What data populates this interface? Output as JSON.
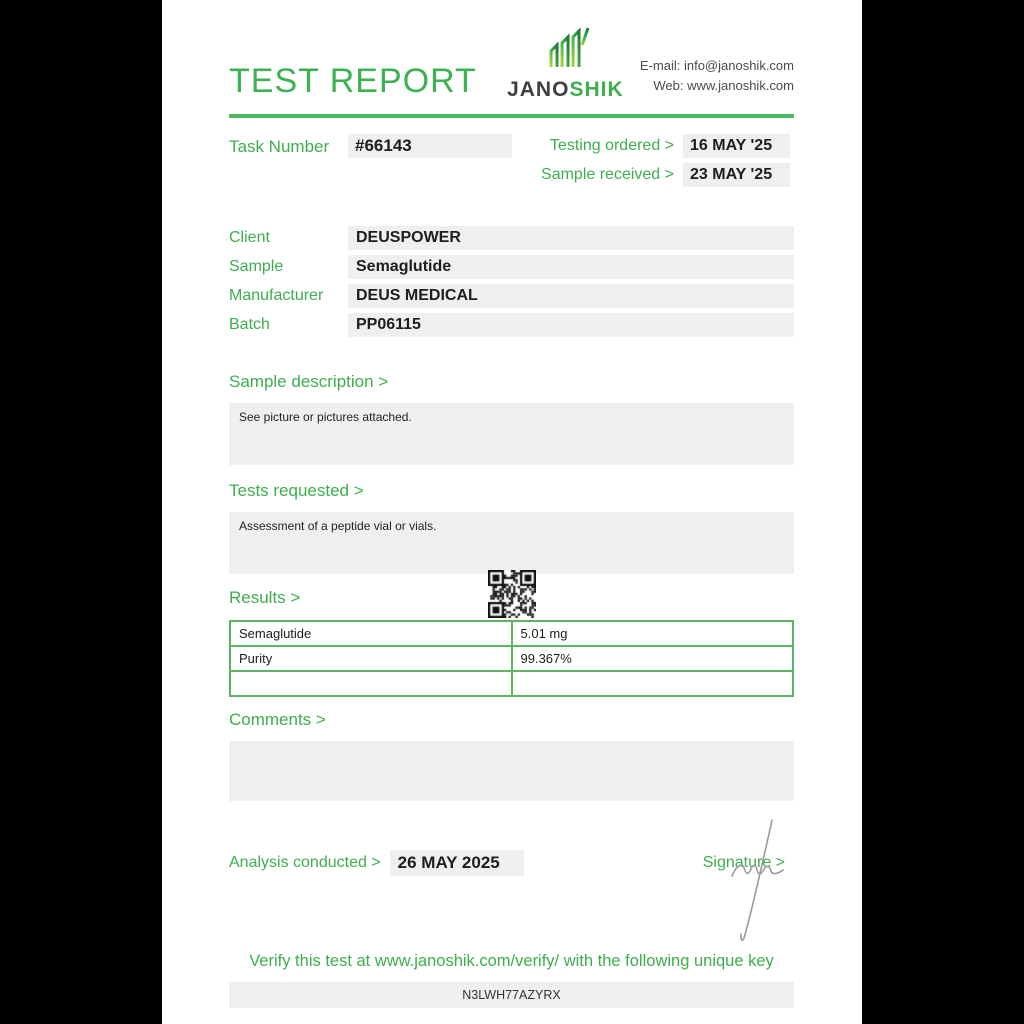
{
  "header": {
    "title": "TEST REPORT",
    "logo_jano": "JANO",
    "logo_shik": "SHIK",
    "email": "E-mail: info@janoshik.com",
    "web": "Web: www.janoshik.com"
  },
  "task": {
    "label": "Task Number",
    "value": "#66143",
    "testing_ordered_label": "Testing ordered >",
    "testing_ordered": "16 MAY '25",
    "sample_received_label": "Sample received >",
    "sample_received": "23 MAY '25"
  },
  "info": {
    "client_label": "Client",
    "client": "DEUSPOWER",
    "sample_label": "Sample",
    "sample": "Semaglutide",
    "manufacturer_label": "Manufacturer",
    "manufacturer": "DEUS MEDICAL",
    "batch_label": "Batch",
    "batch": "PP06115"
  },
  "sections": {
    "sample_description_label": "Sample description >",
    "sample_description": "See picture or pictures attached.",
    "tests_requested_label": "Tests requested >",
    "tests_requested": "Assessment of a peptide vial or vials.",
    "results_label": "Results >",
    "comments_label": "Comments >",
    "comments": ""
  },
  "results_table": {
    "rows": [
      {
        "name": "Semaglutide",
        "value": "5.01 mg"
      },
      {
        "name": "Purity",
        "value": "99.367%"
      },
      {
        "name": "",
        "value": ""
      }
    ]
  },
  "footer": {
    "analysis_label": "Analysis conducted >",
    "analysis_date": "26 MAY 2025",
    "signature_label": "Signature >",
    "verify_text": "Verify this test at www.janoshik.com/verify/ with the following unique key",
    "unique_key": "N3LWH77AZYRX"
  },
  "colors": {
    "green_text": "#3eae4e",
    "title_green": "#3cb253",
    "divider_green": "#4cb85c",
    "table_border_green": "#5bb563",
    "box_gray": "#efefef",
    "text_dark": "#1d1d1b"
  }
}
